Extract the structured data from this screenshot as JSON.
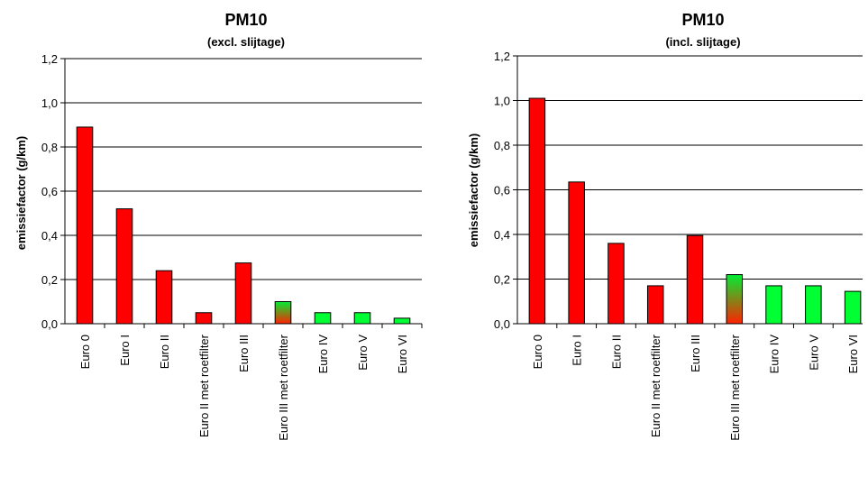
{
  "colors": {
    "red": "#ff0000",
    "green": "#00ff33",
    "gradient_top": "#00ee33",
    "gradient_bottom": "#ff2200",
    "axis": "#000000",
    "grid": "#000000"
  },
  "chart_data": [
    {
      "type": "bar",
      "title": "PM10",
      "subtitle": "(excl. slijtage)",
      "ylabel": "emissiefactor (g/km)",
      "xlabel": "",
      "ylim": [
        0,
        1.2
      ],
      "yticks": [
        "0,0",
        "0,2",
        "0,4",
        "0,6",
        "0,8",
        "1,0",
        "1,2"
      ],
      "grid": true,
      "categories": [
        "Euro 0",
        "Euro I",
        "Euro II",
        "Euro II met roetfilter",
        "Euro III",
        "Euro III met roetfilter",
        "Euro IV",
        "Euro V",
        "Euro VI"
      ],
      "values": [
        0.89,
        0.52,
        0.24,
        0.05,
        0.275,
        0.1,
        0.05,
        0.05,
        0.025
      ],
      "bar_colors": [
        "red",
        "red",
        "red",
        "red",
        "red",
        "gradient",
        "green",
        "green",
        "green"
      ]
    },
    {
      "type": "bar",
      "title": "PM10",
      "subtitle": "(incl. slijtage)",
      "ylabel": "emissiefactor (g/km)",
      "xlabel": "",
      "ylim": [
        0,
        1.2
      ],
      "yticks": [
        "0,0",
        "0,2",
        "0,4",
        "0,6",
        "0,8",
        "1,0",
        "1,2"
      ],
      "grid": true,
      "categories": [
        "Euro 0",
        "Euro I",
        "Euro II",
        "Euro II met roetfilter",
        "Euro III",
        "Euro III met roetfilter",
        "Euro IV",
        "Euro V",
        "Euro VI"
      ],
      "values": [
        1.01,
        0.635,
        0.36,
        0.17,
        0.395,
        0.22,
        0.17,
        0.17,
        0.145
      ],
      "bar_colors": [
        "red",
        "red",
        "red",
        "red",
        "red",
        "gradient",
        "green",
        "green",
        "green"
      ]
    }
  ]
}
